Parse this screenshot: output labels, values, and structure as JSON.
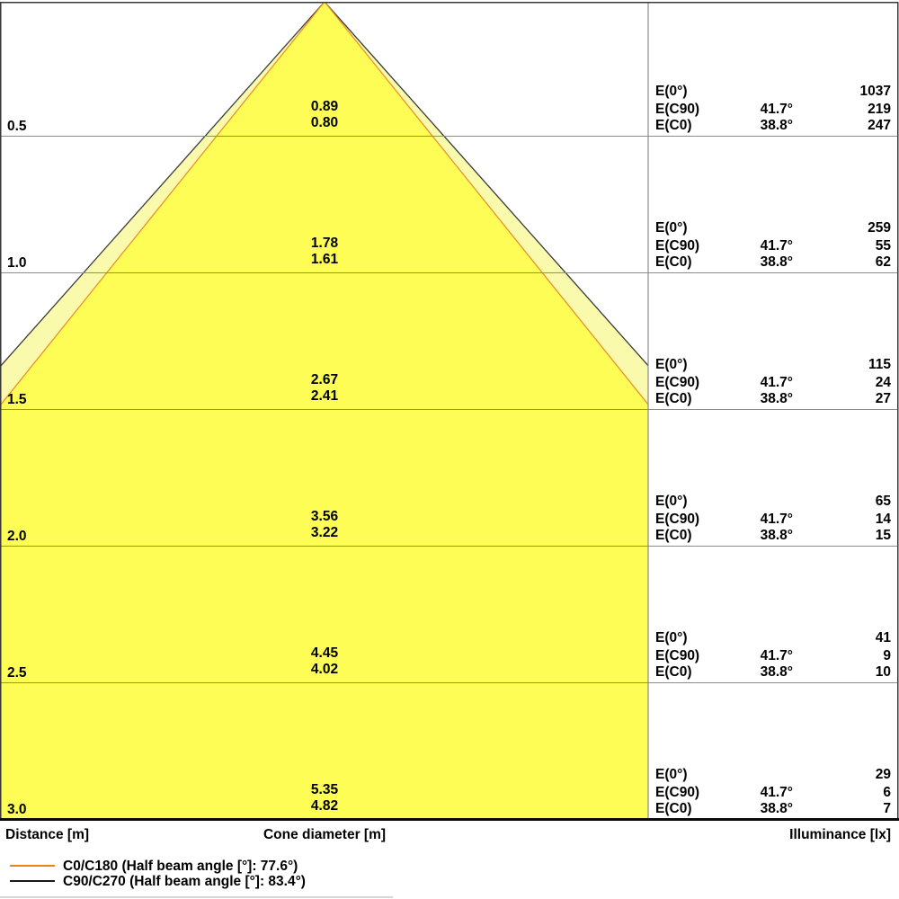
{
  "columns": {
    "distance": "Distance [m]",
    "cone_diameter": "Cone diameter [m]",
    "illuminance": "Illuminance [lx]"
  },
  "row_labels": {
    "e0": "E(0°)",
    "ec90": "E(C90)",
    "ec0": "E(C0)"
  },
  "rows": [
    {
      "distance": "0.5",
      "cone_c90": "0.89",
      "cone_c0": "0.80",
      "e0": "1037",
      "ec90_angle": "41.7°",
      "ec90": "219",
      "ec0_angle": "38.8°",
      "ec0": "247"
    },
    {
      "distance": "1.0",
      "cone_c90": "1.78",
      "cone_c0": "1.61",
      "e0": "259",
      "ec90_angle": "41.7°",
      "ec90": "55",
      "ec0_angle": "38.8°",
      "ec0": "62"
    },
    {
      "distance": "1.5",
      "cone_c90": "2.67",
      "cone_c0": "2.41",
      "e0": "115",
      "ec90_angle": "41.7°",
      "ec90": "24",
      "ec0_angle": "38.8°",
      "ec0": "27"
    },
    {
      "distance": "2.0",
      "cone_c90": "3.56",
      "cone_c0": "3.22",
      "e0": "65",
      "ec90_angle": "41.7°",
      "ec90": "14",
      "ec0_angle": "38.8°",
      "ec0": "15"
    },
    {
      "distance": "2.5",
      "cone_c90": "4.45",
      "cone_c0": "4.02",
      "e0": "41",
      "ec90_angle": "41.7°",
      "ec90": "9",
      "ec0_angle": "38.8°",
      "ec0": "10"
    },
    {
      "distance": "3.0",
      "cone_c90": "5.35",
      "cone_c0": "4.82",
      "e0": "29",
      "ec90_angle": "41.7°",
      "ec90": "6",
      "ec0_angle": "38.8°",
      "ec0": "7"
    }
  ],
  "legend": [
    {
      "label": "C0/C180 (Half beam angle [°]: 77.6°)",
      "color": "#E8831B"
    },
    {
      "label": "C90/C270 (Half beam angle [°]: 83.4°)",
      "color": "#1a1a1a"
    }
  ],
  "colors": {
    "cone_fill": "#FDFD55",
    "cone_band_fill": "#FAFAAD",
    "cone_outline_dark": "#3a3a3a",
    "cone_outline_orange": "#E8922F",
    "gridline": "#8c8c8c",
    "frame": "#3a3a3a",
    "bottom_border": "#0a0a0a"
  },
  "chart_data": {
    "type": "cone-diagram",
    "title": "Light cone diagram (distance vs cone diameter and illuminance)",
    "distances_m": [
      0.5,
      1.0,
      1.5,
      2.0,
      2.5,
      3.0
    ],
    "series": [
      {
        "name": "C90/C270",
        "half_beam_angle_deg": 83.4,
        "half_angle_deg": 41.7,
        "cone_diameter_m": [
          0.89,
          1.78,
          2.67,
          3.56,
          4.45,
          5.35
        ],
        "illuminance_lx": [
          219,
          55,
          24,
          14,
          9,
          6
        ],
        "color": "#1a1a1a"
      },
      {
        "name": "C0/C180",
        "half_beam_angle_deg": 77.6,
        "half_angle_deg": 38.8,
        "cone_diameter_m": [
          0.8,
          1.61,
          2.41,
          3.22,
          4.02,
          4.82
        ],
        "illuminance_lx": [
          247,
          62,
          27,
          15,
          10,
          7
        ],
        "color": "#E8831B"
      },
      {
        "name": "E(0°)",
        "illuminance_lx": [
          1037,
          259,
          115,
          65,
          41,
          29
        ]
      }
    ],
    "axis_labels": [
      "Distance [m]",
      "Cone diameter [m]",
      "Illuminance [lx]"
    ],
    "grid": true,
    "legend_position": "bottom-left"
  }
}
